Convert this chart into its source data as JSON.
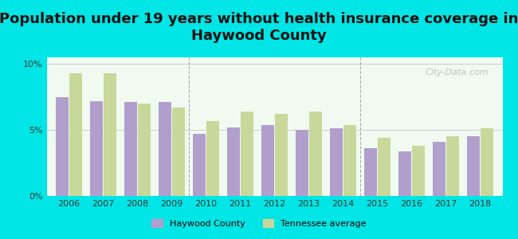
{
  "title": "Population under 19 years without health insurance coverage in\nHaywood County",
  "years": [
    2006,
    2007,
    2008,
    2009,
    2010,
    2011,
    2012,
    2013,
    2014,
    2015,
    2016,
    2017,
    2018
  ],
  "haywood": [
    7.5,
    7.2,
    7.1,
    7.1,
    4.7,
    5.2,
    5.4,
    5.0,
    5.1,
    3.6,
    3.4,
    4.1,
    4.5
  ],
  "tennessee": [
    9.3,
    9.3,
    7.0,
    6.7,
    5.7,
    6.4,
    6.2,
    6.4,
    5.4,
    4.4,
    3.8,
    4.5,
    5.1
  ],
  "haywood_color": "#b09fcc",
  "tennessee_color": "#c8d89a",
  "bg_outer": "#00e5e5",
  "bg_inner_top": "#f0faf0",
  "bg_inner_bottom": "#ffffff",
  "title_fontsize": 13,
  "ylabel_ticks": [
    "0%",
    "5%",
    "10%"
  ],
  "ytick_vals": [
    0,
    5,
    10
  ],
  "ylim": [
    0,
    10.5
  ],
  "watermark": "City-Data.com",
  "legend_haywood": "Haywood County",
  "legend_tennessee": "Tennessee average"
}
